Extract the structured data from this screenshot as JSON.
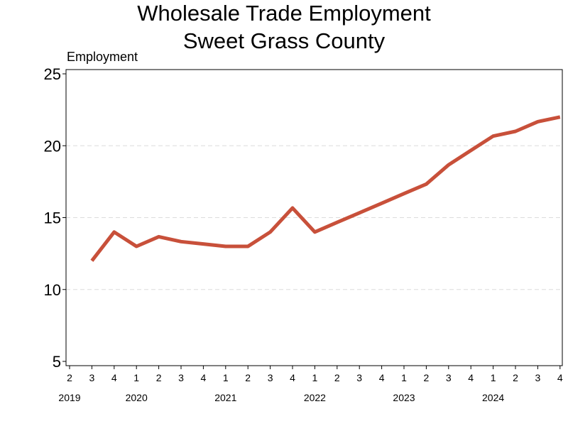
{
  "chart_data": {
    "type": "line",
    "title": [
      "Wholesale Trade Employment",
      "Sweet Grass County"
    ],
    "ylabel": "Employment",
    "xlabel": "",
    "ylim": [
      5,
      25
    ],
    "yticks": [
      5,
      10,
      15,
      20,
      25
    ],
    "grid": "horizontal dashed",
    "x_quarters": [
      "2",
      "3",
      "4",
      "1",
      "2",
      "3",
      "4",
      "1",
      "2",
      "3",
      "4",
      "1",
      "2",
      "3",
      "4",
      "1",
      "2",
      "3",
      "4",
      "1",
      "2",
      "3",
      "4"
    ],
    "years": [
      {
        "label": "2019",
        "quarter_position": 0
      },
      {
        "label": "2020",
        "quarter_position": 3
      },
      {
        "label": "2021",
        "quarter_position": 7
      },
      {
        "label": "2022",
        "quarter_position": 11
      },
      {
        "label": "2023",
        "quarter_position": 15
      },
      {
        "label": "2024",
        "quarter_position": 19
      }
    ],
    "series": [
      {
        "color": "#c8503a",
        "points": [
          {
            "quarter": "2019 Q3",
            "value": 12
          },
          {
            "quarter": "2019 Q4",
            "value": 14
          },
          {
            "quarter": "2020 Q1",
            "value": 13
          },
          {
            "quarter": "2020 Q2",
            "value": 13.67
          },
          {
            "quarter": "2020 Q3",
            "value": 13.33
          },
          {
            "quarter": "2020 Q4",
            "value": 13.17
          },
          {
            "quarter": "2021 Q1",
            "value": 13
          },
          {
            "quarter": "2021 Q2",
            "value": 13
          },
          {
            "quarter": "2021 Q3",
            "value": 14
          },
          {
            "quarter": "2021 Q4",
            "value": 15.67
          },
          {
            "quarter": "2022 Q1",
            "value": 14
          },
          {
            "quarter": "2022 Q2",
            "value": 14.67
          },
          {
            "quarter": "2022 Q3",
            "value": 15.33
          },
          {
            "quarter": "2022 Q4",
            "value": 16
          },
          {
            "quarter": "2023 Q1",
            "value": 16.67
          },
          {
            "quarter": "2023 Q2",
            "value": 17.33
          },
          {
            "quarter": "2023 Q3",
            "value": 18.67
          },
          {
            "quarter": "2023 Q4",
            "value": 19.67
          },
          {
            "quarter": "2024 Q1",
            "value": 20.67
          },
          {
            "quarter": "2024 Q2",
            "value": 21
          },
          {
            "quarter": "2024 Q3",
            "value": 21.67
          },
          {
            "quarter": "2024 Q4",
            "value": 22
          }
        ]
      }
    ]
  }
}
